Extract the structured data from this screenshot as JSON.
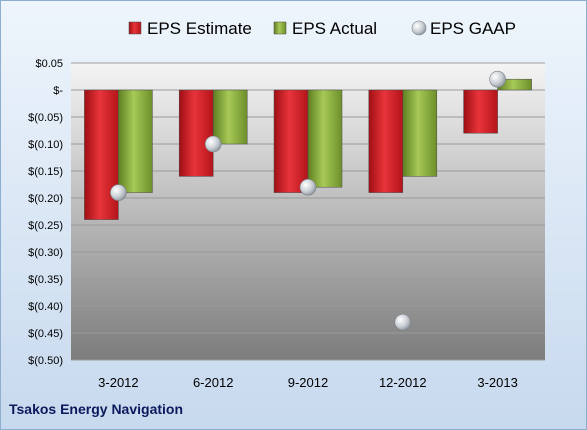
{
  "chart_data": {
    "type": "bar",
    "categories": [
      "3-2012",
      "6-2012",
      "9-2012",
      "12-2012",
      "3-2013"
    ],
    "series": [
      {
        "name": "EPS Estimate",
        "kind": "bar",
        "color": "#d71920",
        "values": [
          -0.24,
          -0.16,
          -0.19,
          -0.19,
          -0.08
        ]
      },
      {
        "name": "EPS Actual",
        "kind": "bar",
        "color": "#8db33a",
        "values": [
          -0.19,
          -0.1,
          -0.18,
          -0.16,
          0.02
        ]
      },
      {
        "name": "EPS GAAP",
        "kind": "marker",
        "color": "#c0c6cc",
        "values": [
          -0.19,
          -0.1,
          -0.18,
          -0.43,
          0.02
        ]
      }
    ],
    "y_ticks": [
      {
        "value": 0.05,
        "label": "$0.05"
      },
      {
        "value": 0,
        "label": "$-"
      },
      {
        "value": -0.05,
        "label": "$(0.05)"
      },
      {
        "value": -0.1,
        "label": "$(0.10)"
      },
      {
        "value": -0.15,
        "label": "$(0.15)"
      },
      {
        "value": -0.2,
        "label": "$(0.20)"
      },
      {
        "value": -0.25,
        "label": "$(0.25)"
      },
      {
        "value": -0.3,
        "label": "$(0.30)"
      },
      {
        "value": -0.35,
        "label": "$(0.35)"
      },
      {
        "value": -0.4,
        "label": "$(0.40)"
      },
      {
        "value": -0.45,
        "label": "$(0.45)"
      },
      {
        "value": -0.5,
        "label": "$(0.50)"
      }
    ],
    "ylim": [
      -0.5,
      0.05
    ],
    "grid": true,
    "legend_position": "top",
    "background": "gradient light-to-dark gray plot area"
  },
  "footer": {
    "company": "Tsakos Energy Navigation"
  }
}
